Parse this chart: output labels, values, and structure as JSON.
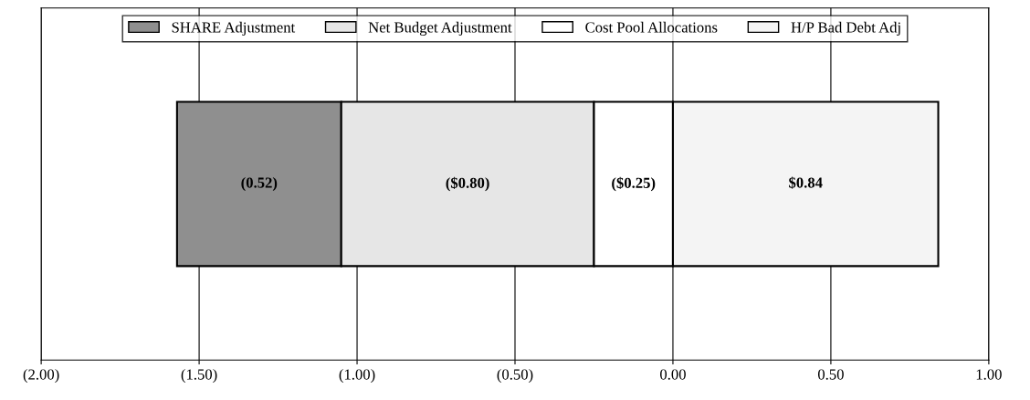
{
  "chart_data": {
    "type": "bar",
    "orientation": "horizontal",
    "categories": [
      null
    ],
    "series": [
      {
        "name": "SHARE Adjustment",
        "color": "#8f8f8f",
        "values": [
          -0.52
        ],
        "base": [
          -1.05
        ],
        "value_labels": [
          "(0.52)"
        ]
      },
      {
        "name": "Net Budget Adjustment",
        "color": "#e6e6e6",
        "values": [
          -0.8
        ],
        "base": [
          -0.25
        ],
        "value_labels": [
          "($0.80)"
        ]
      },
      {
        "name": "Cost Pool Allocations",
        "color": "#ffffff",
        "values": [
          -0.25
        ],
        "base": [
          0
        ],
        "value_labels": [
          "($0.25)"
        ]
      },
      {
        "name": "H/P Bad Debt Adj",
        "color": "#f4f4f4",
        "values": [
          0.84
        ],
        "base": [
          0
        ],
        "value_labels": [
          "$0.84"
        ]
      }
    ],
    "xlim": [
      -2,
      1
    ],
    "xticks": [
      {
        "value": -2,
        "label": "(2.00)"
      },
      {
        "value": -1.5,
        "label": "(1.50)"
      },
      {
        "value": -1,
        "label": "(1.00)"
      },
      {
        "value": -0.5,
        "label": "(0.50)"
      },
      {
        "value": 0,
        "label": "0.00"
      },
      {
        "value": 0.5,
        "label": "0.50"
      },
      {
        "value": 1,
        "label": "1.00"
      }
    ],
    "grid": "x",
    "legend": "top",
    "tick_labels": "x"
  }
}
